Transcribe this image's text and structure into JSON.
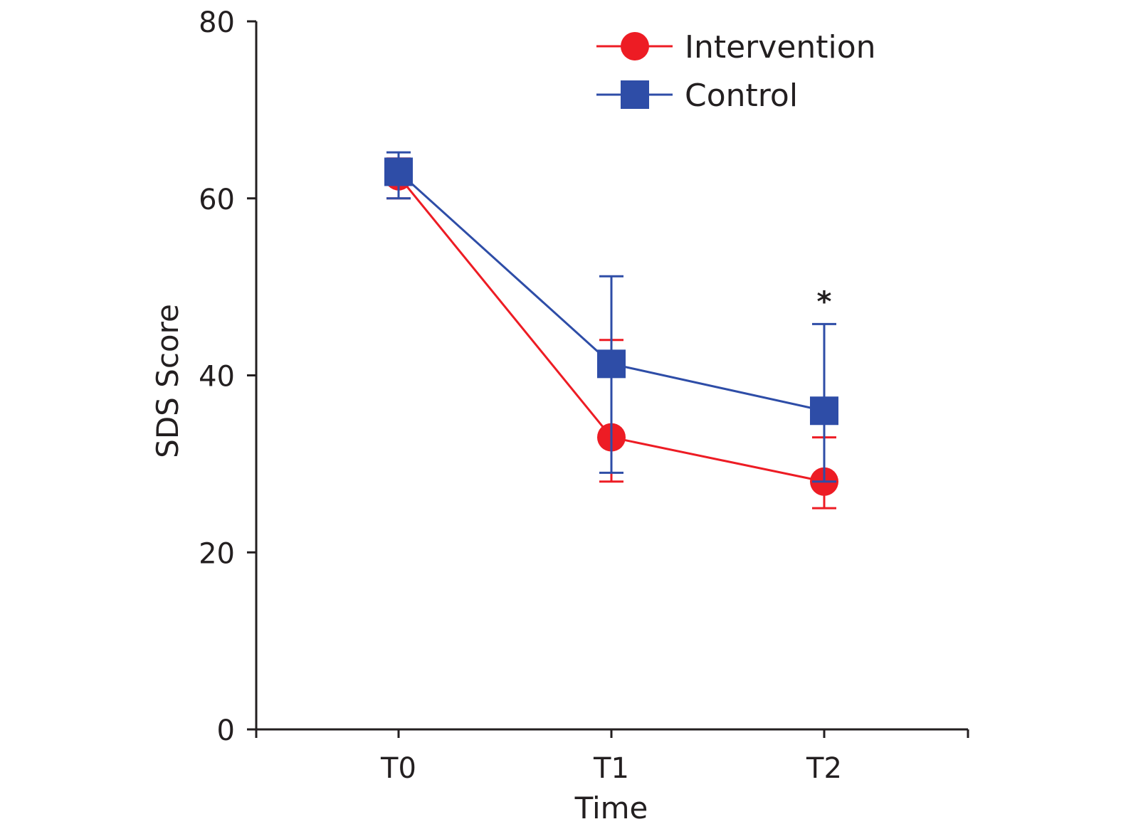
{
  "chart_data": {
    "type": "line",
    "title": "",
    "xlabel": "Time",
    "ylabel": "SDS Score",
    "categories": [
      "T0",
      "T1",
      "T2"
    ],
    "ylim": [
      0,
      80
    ],
    "yticks": [
      "0",
      "20",
      "40",
      "60",
      "80"
    ],
    "legend_position": "top-right",
    "grid": false,
    "series": [
      {
        "name": "Intervention",
        "marker": "circle",
        "color": "#ed1c24",
        "values": [
          62.5,
          33,
          28
        ],
        "error_upper": [
          64.5,
          44,
          33
        ],
        "error_lower": [
          60,
          28,
          25
        ]
      },
      {
        "name": "Control",
        "marker": "square",
        "color": "#2e4da7",
        "values": [
          63,
          41.3,
          36
        ],
        "error_upper": [
          65.2,
          51.2,
          45.8
        ],
        "error_lower": [
          60,
          29,
          28
        ]
      }
    ],
    "annotations": [
      {
        "text": "*",
        "category": "T2",
        "y": 49.5
      }
    ]
  }
}
